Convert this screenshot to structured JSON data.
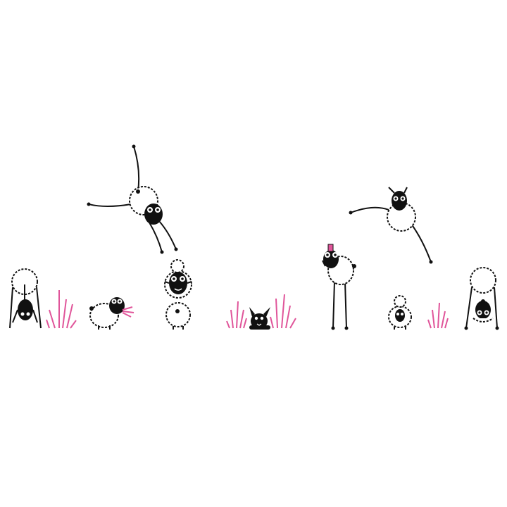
{
  "colors": {
    "background": "#ffffff",
    "ink": "#111111",
    "wool": "#ffffff",
    "grass": "#e0559a",
    "hat": "#e0559a"
  },
  "icons": [
    "sheep-bent-over-icon",
    "grass-tuft-icon",
    "sheep-eating-grass-icon",
    "sheep-stack-icon",
    "sheep-cartwheel-icon",
    "rabbit-peeking-icon",
    "sheep-tall-legs-icon",
    "sheep-leaping-icon",
    "lamb-sitting-icon"
  ]
}
